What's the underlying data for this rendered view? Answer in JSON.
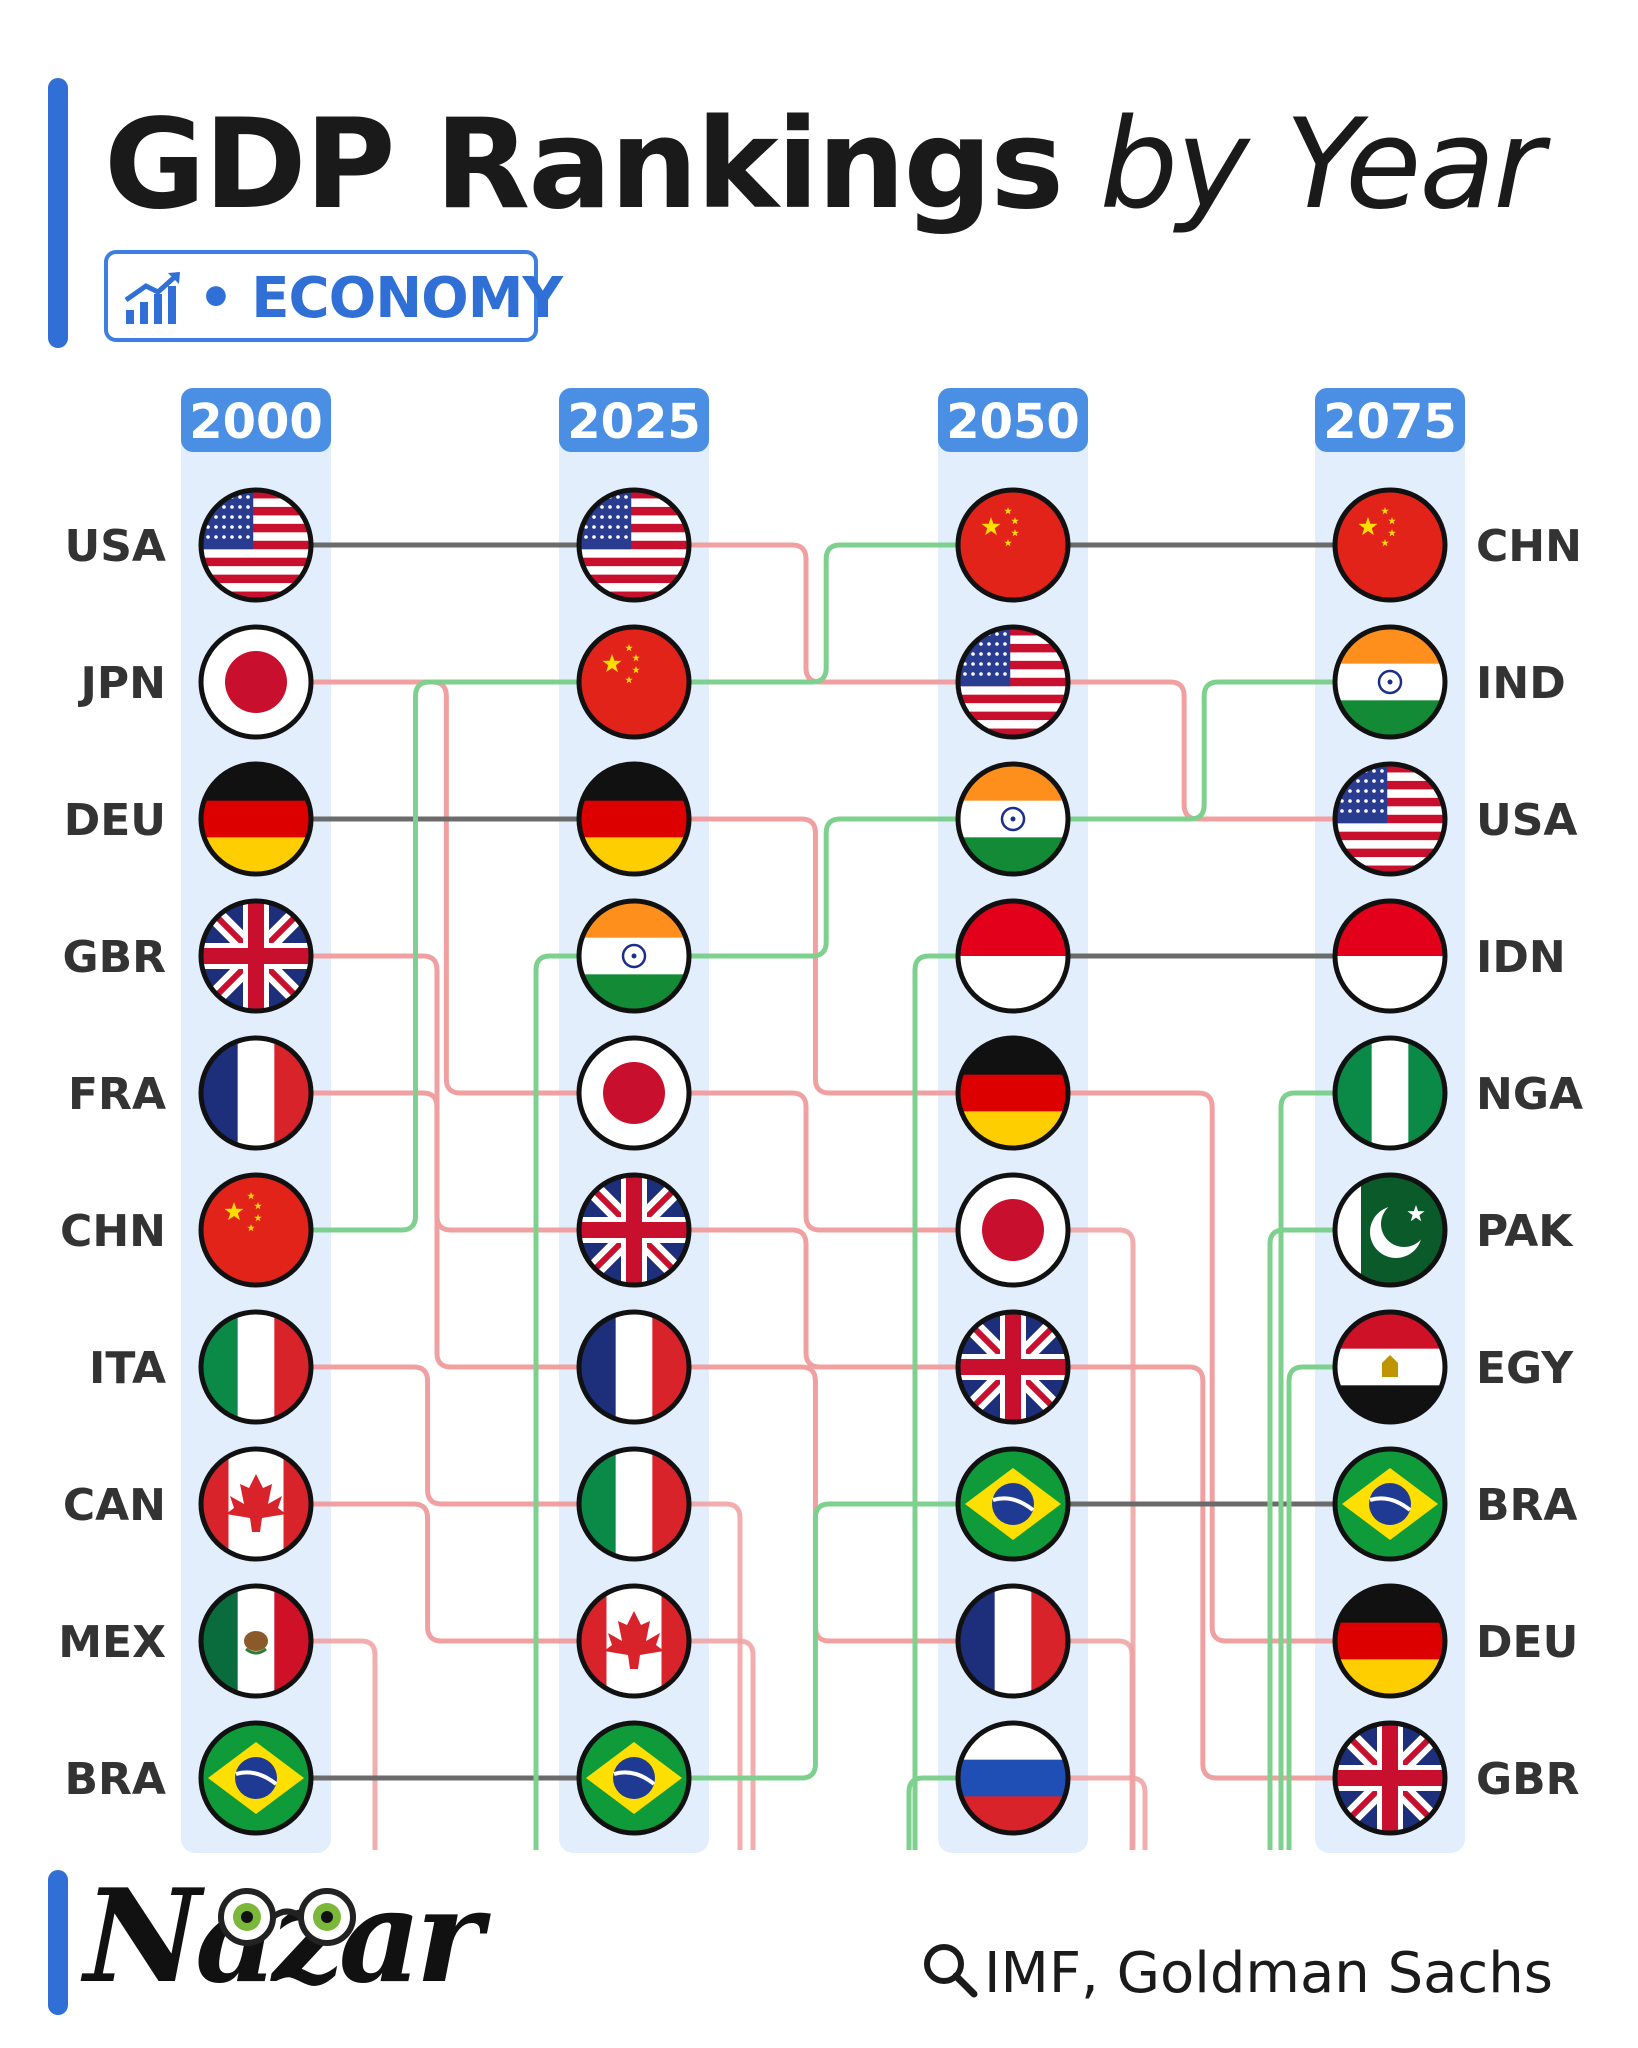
{
  "header": {
    "title_bold": "GDP Rankings",
    "title_italic": "by Year",
    "badge_label": "• ECONOMY",
    "badge_icon": "chart-up-icon"
  },
  "chart_data": {
    "type": "bump",
    "years": [
      "2000",
      "2025",
      "2050",
      "2075"
    ],
    "rankings": [
      [
        "USA",
        "JPN",
        "DEU",
        "GBR",
        "FRA",
        "CHN",
        "ITA",
        "CAN",
        "MEX",
        "BRA"
      ],
      [
        "USA",
        "CHN",
        "DEU",
        "IND",
        "JPN",
        "GBR",
        "FRA",
        "ITA",
        "CAN",
        "BRA"
      ],
      [
        "CHN",
        "USA",
        "IND",
        "IDN",
        "DEU",
        "JPN",
        "GBR",
        "BRA",
        "FRA",
        "RUS"
      ],
      [
        "CHN",
        "IND",
        "USA",
        "IDN",
        "NGA",
        "PAK",
        "EGY",
        "BRA",
        "DEU",
        "GBR"
      ]
    ],
    "left_labels": [
      "USA",
      "JPN",
      "DEU",
      "GBR",
      "FRA",
      "CHN",
      "ITA",
      "CAN",
      "MEX",
      "BRA"
    ],
    "right_labels": [
      "CHN",
      "IND",
      "USA",
      "IDN",
      "NGA",
      "PAK",
      "EGY",
      "BRA",
      "DEU",
      "GBR"
    ],
    "line_colors": {
      "up": "#7ed08e",
      "down": "#f0a0a0",
      "same": "#6b6b6b"
    },
    "column_color": "#e3eefc",
    "year_badge_color": "#4a8fe4"
  },
  "footer": {
    "logo": "Nazar",
    "source": "IMF, Goldman Sachs",
    "source_icon": "search-icon"
  }
}
